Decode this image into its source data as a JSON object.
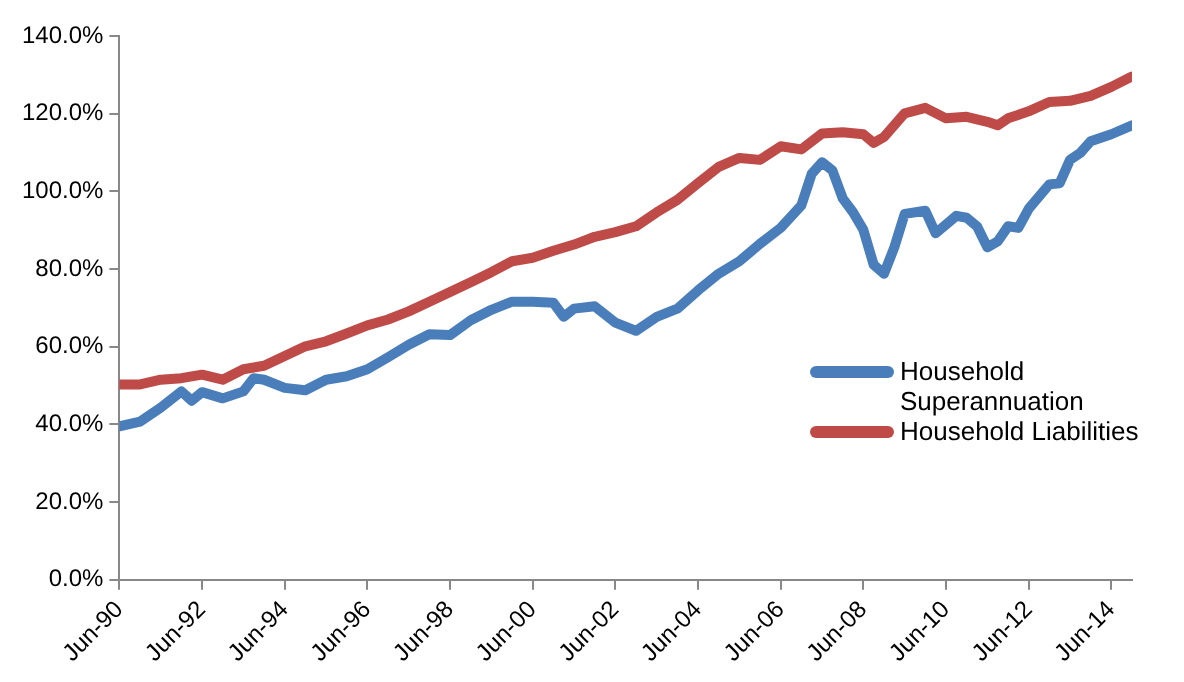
{
  "chart_data": {
    "type": "line",
    "xlim": [
      "1990-06",
      "2014-12"
    ],
    "xticks": [
      {
        "value": "1990-06",
        "label": "Jun-90"
      },
      {
        "value": "1992-06",
        "label": "Jun-92"
      },
      {
        "value": "1994-06",
        "label": "Jun-94"
      },
      {
        "value": "1996-06",
        "label": "Jun-96"
      },
      {
        "value": "1998-06",
        "label": "Jun-98"
      },
      {
        "value": "2000-06",
        "label": "Jun-00"
      },
      {
        "value": "2002-06",
        "label": "Jun-02"
      },
      {
        "value": "2004-06",
        "label": "Jun-04"
      },
      {
        "value": "2006-06",
        "label": "Jun-06"
      },
      {
        "value": "2008-06",
        "label": "Jun-08"
      },
      {
        "value": "2010-06",
        "label": "Jun-10"
      },
      {
        "value": "2012-06",
        "label": "Jun-12"
      },
      {
        "value": "2014-06",
        "label": "Jun-14"
      }
    ],
    "ylim": [
      0,
      140
    ],
    "yticks": [
      {
        "value": 0,
        "label": "0.0%"
      },
      {
        "value": 20,
        "label": "20.0%"
      },
      {
        "value": 40,
        "label": "40.0%"
      },
      {
        "value": 60,
        "label": "60.0%"
      },
      {
        "value": 80,
        "label": "80.0%"
      },
      {
        "value": 100,
        "label": "100.0%"
      },
      {
        "value": 120,
        "label": "120.0%"
      },
      {
        "value": 140,
        "label": "140.0%"
      }
    ],
    "grid": false,
    "legend": "right",
    "marker": "none",
    "line_style": "solid",
    "series": [
      {
        "name": "Household Superannuation",
        "color": "#4a7ebb",
        "x": [
          "1990-06",
          "1990-12",
          "1991-06",
          "1991-12",
          "1992-03",
          "1992-06",
          "1992-12",
          "1993-06",
          "1993-09",
          "1993-12",
          "1994-06",
          "1994-12",
          "1995-06",
          "1995-12",
          "1996-06",
          "1996-12",
          "1997-06",
          "1997-12",
          "1998-06",
          "1998-12",
          "1999-06",
          "1999-12",
          "2000-06",
          "2000-12",
          "2001-03",
          "2001-06",
          "2001-12",
          "2002-06",
          "2002-12",
          "2003-06",
          "2003-12",
          "2004-06",
          "2004-12",
          "2005-06",
          "2005-12",
          "2006-06",
          "2006-12",
          "2007-03",
          "2007-06",
          "2007-09",
          "2007-12",
          "2008-03",
          "2008-06",
          "2008-09",
          "2008-12",
          "2009-03",
          "2009-06",
          "2009-12",
          "2010-03",
          "2010-09",
          "2010-12",
          "2011-03",
          "2011-06",
          "2011-09",
          "2011-12",
          "2012-03",
          "2012-06",
          "2012-12",
          "2013-03",
          "2013-06",
          "2013-09",
          "2013-12",
          "2014-06",
          "2014-12"
        ],
        "values": [
          39.5,
          40.7,
          44.3,
          48.5,
          46.1,
          48.3,
          46.7,
          48.5,
          51.9,
          51.5,
          49.4,
          48.8,
          51.5,
          52.4,
          54.2,
          57.3,
          60.5,
          63.2,
          63.0,
          66.8,
          69.5,
          71.6,
          71.6,
          71.3,
          67.7,
          69.8,
          70.4,
          66.2,
          64.1,
          67.7,
          69.8,
          74.5,
          78.8,
          82.0,
          86.5,
          90.6,
          96.4,
          104.5,
          107.5,
          105.4,
          98.2,
          94.6,
          90.1,
          81.1,
          78.8,
          85.6,
          94.2,
          95.0,
          89.2,
          93.7,
          93.2,
          91.0,
          85.6,
          87.1,
          91.0,
          90.6,
          95.5,
          101.8,
          102.1,
          108.1,
          109.9,
          112.9,
          114.7,
          117.0
        ]
      },
      {
        "name": "Household Liabilities",
        "color": "#be4b48",
        "x": [
          "1990-06",
          "1990-12",
          "1991-06",
          "1991-12",
          "1992-06",
          "1992-12",
          "1993-06",
          "1993-12",
          "1994-06",
          "1994-12",
          "1995-06",
          "1995-12",
          "1996-06",
          "1996-12",
          "1997-06",
          "1997-12",
          "1998-06",
          "1998-12",
          "1999-06",
          "1999-12",
          "2000-06",
          "2000-12",
          "2001-06",
          "2001-12",
          "2002-06",
          "2002-12",
          "2003-06",
          "2003-12",
          "2004-06",
          "2004-12",
          "2005-06",
          "2005-12",
          "2006-06",
          "2006-12",
          "2007-06",
          "2007-12",
          "2008-06",
          "2008-09",
          "2008-12",
          "2009-06",
          "2009-12",
          "2010-06",
          "2010-12",
          "2011-06",
          "2011-09",
          "2011-12",
          "2012-06",
          "2012-12",
          "2013-06",
          "2013-12",
          "2014-06",
          "2014-12"
        ],
        "values": [
          50.3,
          50.3,
          51.5,
          51.9,
          52.8,
          51.5,
          54.2,
          55.1,
          57.6,
          60.1,
          61.4,
          63.4,
          65.5,
          67.0,
          69.1,
          71.6,
          74.1,
          76.6,
          79.2,
          82.0,
          82.9,
          84.7,
          86.3,
          88.3,
          89.5,
          91.0,
          94.6,
          97.8,
          102.1,
          106.3,
          108.6,
          108.1,
          111.6,
          110.8,
          114.9,
          115.2,
          114.7,
          112.5,
          114.0,
          120.1,
          121.5,
          118.8,
          119.2,
          117.9,
          117.0,
          118.8,
          120.6,
          123.0,
          123.3,
          124.6,
          126.9,
          129.6
        ]
      }
    ]
  }
}
